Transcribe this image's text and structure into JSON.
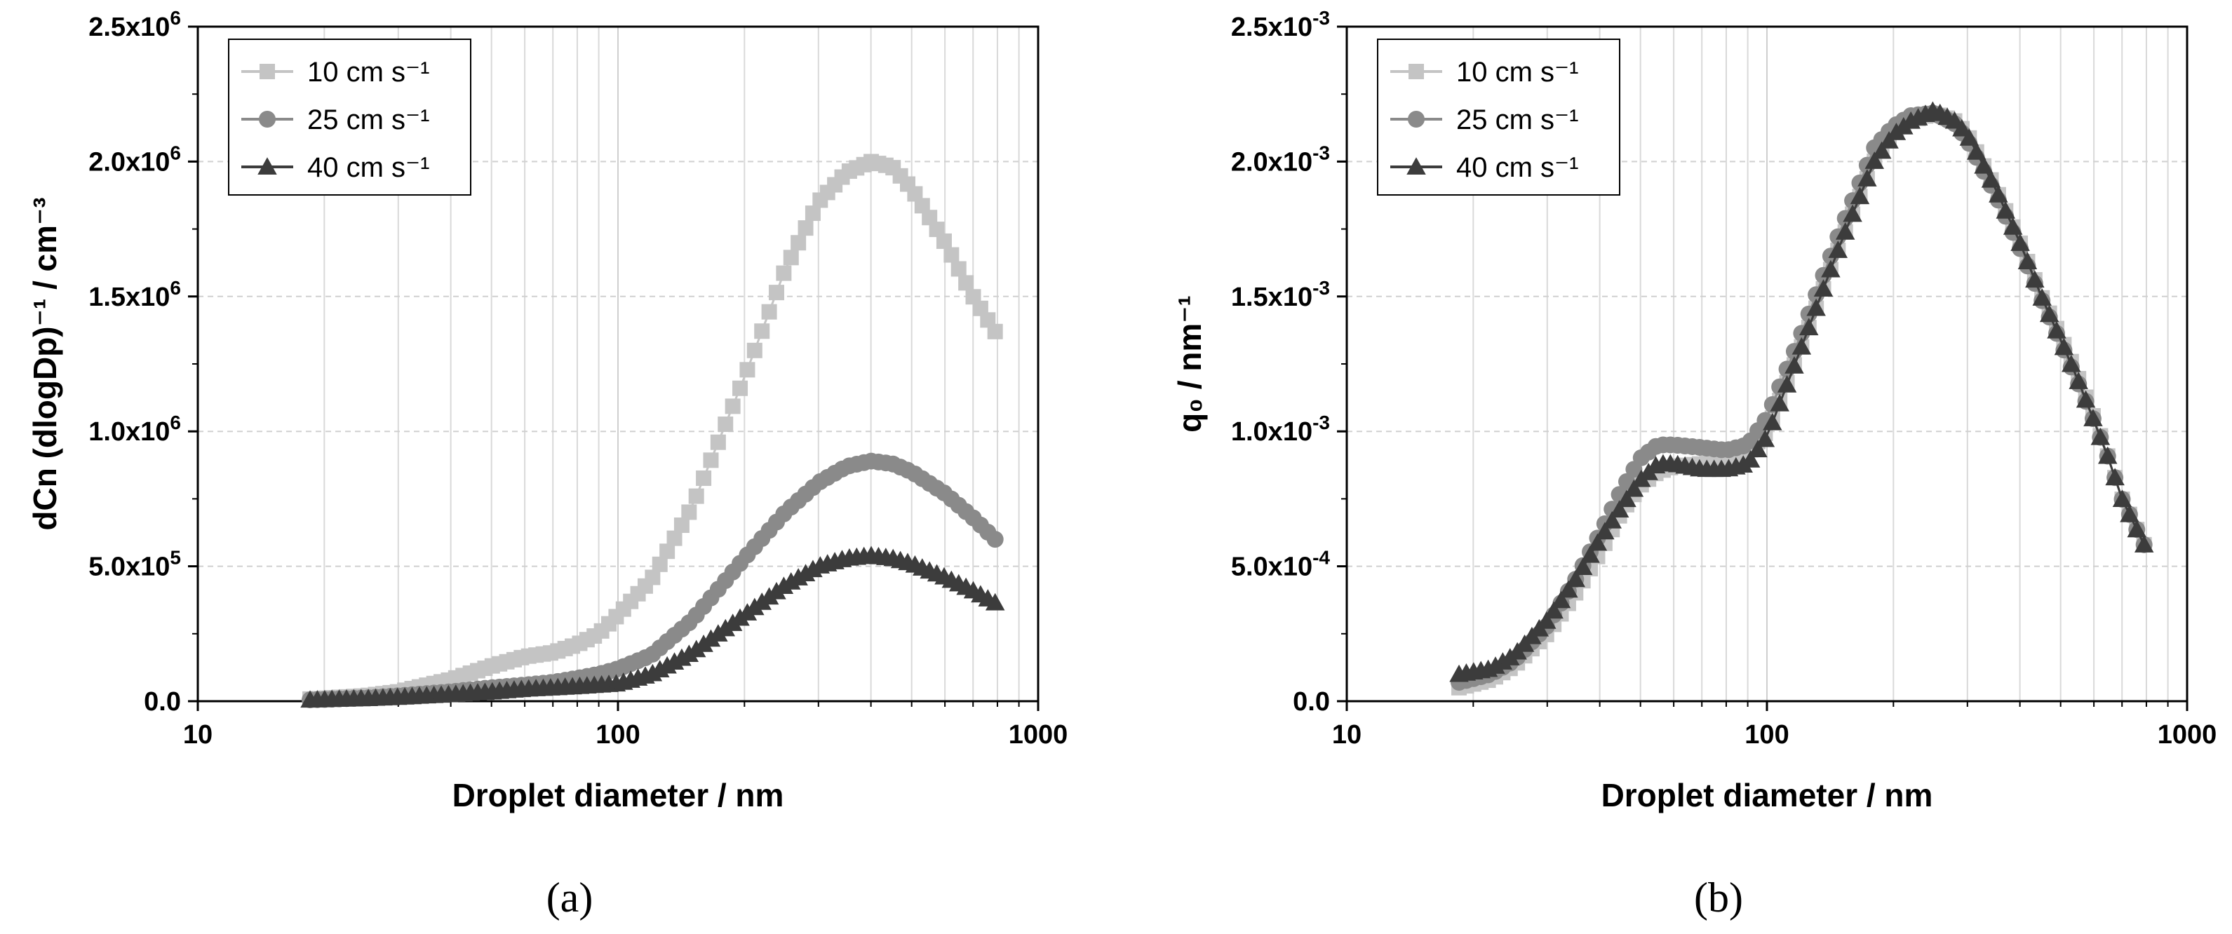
{
  "figure": {
    "caption_a": "(a)",
    "caption_b": "(b)"
  },
  "chart_data": [
    {
      "id": "a",
      "type": "scatter",
      "xscale": "log",
      "xlim": [
        10,
        1000
      ],
      "ylim": [
        0,
        2500000
      ],
      "xlabel": "Droplet diameter / nm",
      "ylabel": "dCn (dlogDp)⁻¹ / cm⁻³",
      "xticks": [
        10,
        100,
        1000
      ],
      "xtick_labels": [
        "10",
        "100",
        "1000"
      ],
      "yticks": [
        0,
        500000,
        1000000,
        1500000,
        2000000,
        2500000
      ],
      "ytick_labels": [
        {
          "base": "0.0",
          "exp": ""
        },
        {
          "base": "5.0x10",
          "exp": "5"
        },
        {
          "base": "1.0x10",
          "exp": "6"
        },
        {
          "base": "1.5x10",
          "exp": "6"
        },
        {
          "base": "2.0x10",
          "exp": "6"
        },
        {
          "base": "2.5x10",
          "exp": "6"
        }
      ],
      "legend_position": "top-left",
      "series": [
        {
          "name": "10 cm s⁻¹",
          "marker": "square",
          "color": "#c4c4c4",
          "points": [
            [
              18.5,
              8000
            ],
            [
              25,
              20000
            ],
            [
              30,
              35000
            ],
            [
              40,
              80000
            ],
            [
              50,
              130000
            ],
            [
              60,
              165000
            ],
            [
              70,
              180000
            ],
            [
              80,
              210000
            ],
            [
              90,
              250000
            ],
            [
              100,
              320000
            ],
            [
              120,
              450000
            ],
            [
              150,
              720000
            ],
            [
              200,
              1200000
            ],
            [
              250,
              1600000
            ],
            [
              300,
              1850000
            ],
            [
              350,
              1960000
            ],
            [
              400,
              2000000
            ],
            [
              450,
              1980000
            ],
            [
              500,
              1900000
            ],
            [
              600,
              1700000
            ],
            [
              700,
              1500000
            ],
            [
              790,
              1370000
            ]
          ]
        },
        {
          "name": "25 cm s⁻¹",
          "marker": "circle",
          "color": "#8a8a8a",
          "points": [
            [
              18.5,
              5000
            ],
            [
              25,
              12000
            ],
            [
              30,
              20000
            ],
            [
              40,
              35000
            ],
            [
              50,
              50000
            ],
            [
              60,
              60000
            ],
            [
              70,
              70000
            ],
            [
              80,
              85000
            ],
            [
              90,
              100000
            ],
            [
              100,
              120000
            ],
            [
              120,
              170000
            ],
            [
              150,
              300000
            ],
            [
              200,
              530000
            ],
            [
              250,
              700000
            ],
            [
              300,
              810000
            ],
            [
              350,
              870000
            ],
            [
              400,
              890000
            ],
            [
              450,
              880000
            ],
            [
              500,
              850000
            ],
            [
              600,
              770000
            ],
            [
              700,
              680000
            ],
            [
              790,
              600000
            ]
          ]
        },
        {
          "name": "40 cm s⁻¹",
          "marker": "triangle",
          "color": "#3c3c3c",
          "points": [
            [
              18.5,
              5000
            ],
            [
              25,
              10000
            ],
            [
              30,
              15000
            ],
            [
              40,
              25000
            ],
            [
              50,
              35000
            ],
            [
              60,
              45000
            ],
            [
              70,
              50000
            ],
            [
              80,
              55000
            ],
            [
              90,
              60000
            ],
            [
              100,
              65000
            ],
            [
              120,
              100000
            ],
            [
              150,
              180000
            ],
            [
              200,
              320000
            ],
            [
              250,
              430000
            ],
            [
              300,
              500000
            ],
            [
              350,
              530000
            ],
            [
              400,
              540000
            ],
            [
              450,
              530000
            ],
            [
              500,
              510000
            ],
            [
              600,
              460000
            ],
            [
              700,
              410000
            ],
            [
              790,
              365000
            ]
          ]
        }
      ]
    },
    {
      "id": "b",
      "type": "scatter",
      "xscale": "log",
      "xlim": [
        10,
        1000
      ],
      "ylim": [
        0,
        0.0025
      ],
      "xlabel": "Droplet diameter / nm",
      "ylabel": "q₀ / nm⁻¹",
      "xticks": [
        10,
        100,
        1000
      ],
      "xtick_labels": [
        "10",
        "100",
        "1000"
      ],
      "yticks": [
        0,
        0.0005,
        0.001,
        0.0015,
        0.002,
        0.0025
      ],
      "ytick_labels": [
        {
          "base": "0.0",
          "exp": ""
        },
        {
          "base": "5.0x10",
          "exp": "-4"
        },
        {
          "base": "1.0x10",
          "exp": "-3"
        },
        {
          "base": "1.5x10",
          "exp": "-3"
        },
        {
          "base": "2.0x10",
          "exp": "-3"
        },
        {
          "base": "2.5x10",
          "exp": "-3"
        }
      ],
      "legend_position": "top-left",
      "series": [
        {
          "name": "10 cm s⁻¹",
          "marker": "square",
          "color": "#c4c4c4",
          "points": [
            [
              18.5,
              5e-05
            ],
            [
              22,
              8e-05
            ],
            [
              25,
              0.00013
            ],
            [
              30,
              0.00025
            ],
            [
              35,
              0.0004
            ],
            [
              40,
              0.00055
            ],
            [
              45,
              0.0007
            ],
            [
              50,
              0.0008
            ],
            [
              55,
              0.00085
            ],
            [
              60,
              0.00087
            ],
            [
              70,
              0.00088
            ],
            [
              80,
              0.0009
            ],
            [
              90,
              0.00092
            ],
            [
              100,
              0.001
            ],
            [
              120,
              0.0013
            ],
            [
              150,
              0.0017
            ],
            [
              180,
              0.002
            ],
            [
              200,
              0.0021
            ],
            [
              220,
              0.00215
            ],
            [
              250,
              0.00218
            ],
            [
              280,
              0.00215
            ],
            [
              300,
              0.0021
            ],
            [
              350,
              0.0019
            ],
            [
              400,
              0.0017
            ],
            [
              450,
              0.0015
            ],
            [
              500,
              0.00135
            ],
            [
              550,
              0.0012
            ],
            [
              600,
              0.00105
            ],
            [
              650,
              0.0009
            ],
            [
              700,
              0.00075
            ],
            [
              790,
              0.00058
            ]
          ]
        },
        {
          "name": "25 cm s⁻¹",
          "marker": "circle",
          "color": "#8a8a8a",
          "points": [
            [
              18.5,
              7e-05
            ],
            [
              22,
              0.0001
            ],
            [
              25,
              0.00015
            ],
            [
              30,
              0.00028
            ],
            [
              35,
              0.00045
            ],
            [
              40,
              0.00062
            ],
            [
              45,
              0.00078
            ],
            [
              50,
              0.0009
            ],
            [
              55,
              0.00095
            ],
            [
              60,
              0.00095
            ],
            [
              70,
              0.00094
            ],
            [
              80,
              0.00093
            ],
            [
              90,
              0.00095
            ],
            [
              100,
              0.00105
            ],
            [
              120,
              0.00135
            ],
            [
              150,
              0.00175
            ],
            [
              180,
              0.00205
            ],
            [
              200,
              0.00213
            ],
            [
              220,
              0.00217
            ],
            [
              250,
              0.00218
            ],
            [
              280,
              0.00214
            ],
            [
              300,
              0.00208
            ],
            [
              350,
              0.00188
            ],
            [
              400,
              0.00168
            ],
            [
              450,
              0.00149
            ],
            [
              500,
              0.00133
            ],
            [
              550,
              0.00118
            ],
            [
              600,
              0.00104
            ],
            [
              650,
              0.0009
            ],
            [
              700,
              0.00075
            ],
            [
              790,
              0.00058
            ]
          ]
        },
        {
          "name": "40 cm s⁻¹",
          "marker": "triangle",
          "color": "#3c3c3c",
          "points": [
            [
              18.5,
              0.0001
            ],
            [
              22,
              0.00012
            ],
            [
              25,
              0.00017
            ],
            [
              30,
              0.0003
            ],
            [
              35,
              0.00045
            ],
            [
              40,
              0.0006
            ],
            [
              45,
              0.00072
            ],
            [
              50,
              0.00082
            ],
            [
              55,
              0.00088
            ],
            [
              60,
              0.00088
            ],
            [
              70,
              0.00086
            ],
            [
              80,
              0.00086
            ],
            [
              90,
              0.00088
            ],
            [
              100,
              0.00098
            ],
            [
              120,
              0.0013
            ],
            [
              150,
              0.0017
            ],
            [
              180,
              0.002
            ],
            [
              200,
              0.0021
            ],
            [
              220,
              0.00215
            ],
            [
              250,
              0.00219
            ],
            [
              280,
              0.00215
            ],
            [
              300,
              0.0021
            ],
            [
              350,
              0.0019
            ],
            [
              400,
              0.0017
            ],
            [
              450,
              0.0015
            ],
            [
              500,
              0.00134
            ],
            [
              550,
              0.00119
            ],
            [
              600,
              0.00104
            ],
            [
              650,
              0.0009
            ],
            [
              700,
              0.00075
            ],
            [
              790,
              0.00058
            ]
          ]
        }
      ]
    }
  ]
}
